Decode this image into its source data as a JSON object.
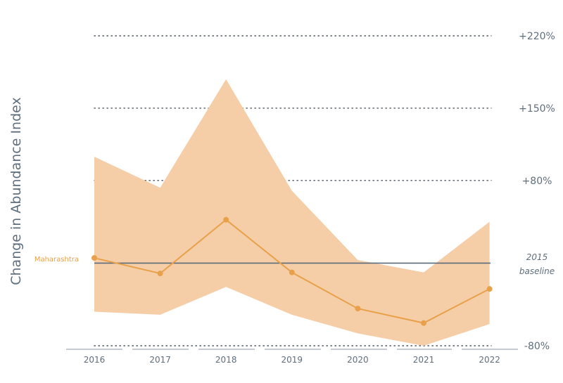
{
  "chart_data": {
    "type": "line",
    "ylabel": "Change in Abundance Index",
    "x": [
      "2016",
      "2017",
      "2018",
      "2019",
      "2020",
      "2021",
      "2022"
    ],
    "y_ticks": [
      {
        "value": 220,
        "label": "+220%"
      },
      {
        "value": 150,
        "label": "+150%"
      },
      {
        "value": 80,
        "label": "+80%"
      },
      {
        "value": -80,
        "label": "-80%"
      }
    ],
    "ylim": [
      -80,
      220
    ],
    "grid": "dotted",
    "baseline": {
      "value": 0,
      "label_line1": "2015",
      "label_line2": "baseline"
    },
    "series": [
      {
        "name": "Maharashtra",
        "values": [
          5,
          -10,
          42,
          -9,
          -44,
          -58,
          -25
        ],
        "band_upper": [
          103,
          73,
          178,
          70,
          3,
          -9,
          40
        ],
        "band_lower": [
          -47,
          -50,
          -23,
          -50,
          -68,
          -80,
          -59
        ],
        "color": "#e8a14a",
        "band_color": "#f5cda6"
      }
    ],
    "colors": {
      "baseline": "#5a6b7b",
      "grid": "#4a5560",
      "text": "#5f6e7d"
    }
  }
}
